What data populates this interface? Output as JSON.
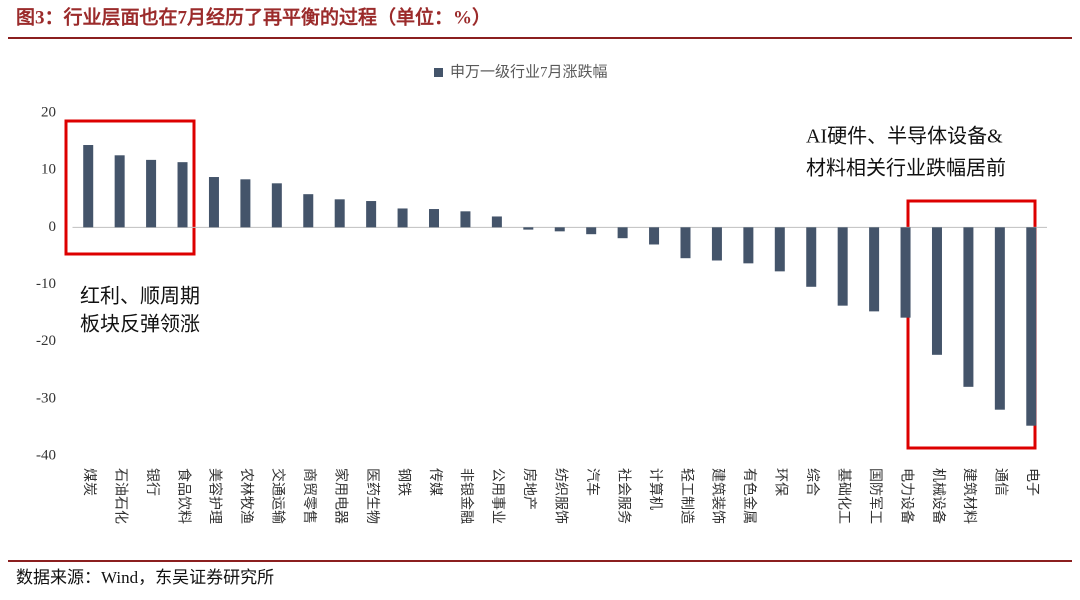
{
  "chart_data": {
    "type": "bar",
    "title": "图3：行业层面也在7月经历了再平衡的过程（单位：%）",
    "series": [
      {
        "name": "申万一级行业7月涨跌幅",
        "color": "#44546a",
        "values": [
          14.4,
          12.6,
          11.8,
          11.4,
          8.8,
          8.4,
          7.7,
          5.8,
          4.9,
          4.6,
          3.3,
          3.2,
          2.8,
          1.9,
          -0.4,
          -0.7,
          -1.2,
          -1.9,
          -3.0,
          -5.4,
          -5.8,
          -6.3,
          -7.7,
          -10.4,
          -13.7,
          -14.7,
          -15.8,
          -22.3,
          -27.9,
          -31.9,
          -34.7
        ]
      }
    ],
    "categories": [
      "煤炭",
      "石油石化",
      "银行",
      "食品饮料",
      "美容护理",
      "农林牧渔",
      "交通运输",
      "商贸零售",
      "家用电器",
      "医药生物",
      "钢铁",
      "传媒",
      "非银金融",
      "公用事业",
      "房地产",
      "纺织服饰",
      "汽车",
      "社会服务",
      "计算机",
      "轻工制造",
      "建筑装饰",
      "有色金属",
      "环保",
      "综合",
      "基础化工",
      "国防军工",
      "电力设备",
      "机械设备",
      "建筑材料",
      "通信",
      "电子"
    ],
    "ylim": [
      -40,
      20
    ],
    "yticks": [
      20,
      10,
      0,
      -10,
      -20,
      -30,
      -40
    ],
    "legend": "top",
    "annotations": [
      "红利、顺周期",
      "板块反弹领涨",
      "AI硬件、半导体设备&",
      "材料相关行业跌幅居前"
    ],
    "source": "数据来源：Wind，东吴证券研究所"
  }
}
